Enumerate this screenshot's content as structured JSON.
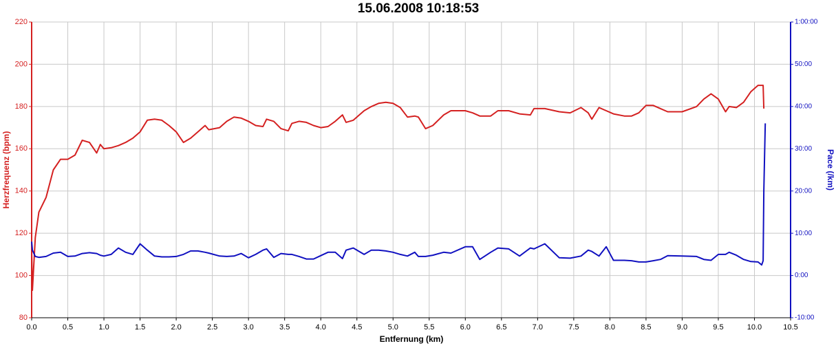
{
  "chart_data": {
    "type": "line",
    "title": "15.06.2008 10:18:53",
    "xlabel": "Entfernung (km)",
    "ylabel": "Herzfrequenz (bpm)",
    "y2label": "Pace (/km)",
    "x": [
      0,
      0.01,
      0.05,
      0.1,
      0.2,
      0.3,
      0.4,
      0.5,
      0.6,
      0.7,
      0.8,
      0.9,
      0.95,
      1.0,
      1.1,
      1.2,
      1.3,
      1.4,
      1.5,
      1.6,
      1.7,
      1.8,
      1.9,
      2.0,
      2.1,
      2.2,
      2.3,
      2.4,
      2.45,
      2.6,
      2.7,
      2.8,
      2.9,
      3.0,
      3.1,
      3.2,
      3.25,
      3.35,
      3.45,
      3.55,
      3.6,
      3.7,
      3.8,
      3.9,
      4.0,
      4.1,
      4.2,
      4.3,
      4.35,
      4.45,
      4.6,
      4.7,
      4.8,
      4.9,
      5.0,
      5.1,
      5.2,
      5.3,
      5.35,
      5.45,
      5.55,
      5.7,
      5.8,
      6.0,
      6.1,
      6.2,
      6.35,
      6.45,
      6.6,
      6.75,
      6.9,
      6.95,
      7.1,
      7.3,
      7.45,
      7.6,
      7.7,
      7.75,
      7.85,
      7.95,
      8.05,
      8.2,
      8.3,
      8.4,
      8.5,
      8.6,
      8.7,
      8.8,
      9.0,
      9.2,
      9.3,
      9.4,
      9.5,
      9.6,
      9.65,
      9.75,
      9.85,
      9.95,
      10.05,
      10.1,
      10.12,
      10.13,
      10.15
    ],
    "series": [
      {
        "name": "Herzfrequenz (bpm)",
        "color": "#d42020",
        "axis": "y",
        "values": [
          112,
          93,
          118,
          130,
          137,
          150,
          155,
          155,
          157,
          164,
          163,
          158,
          162,
          160,
          160.5,
          161.5,
          163,
          165,
          168,
          173.5,
          174,
          173.5,
          171,
          168,
          163,
          165,
          168,
          171,
          169,
          170,
          173,
          175,
          174.5,
          173,
          171,
          170.5,
          174,
          173,
          169.5,
          168.5,
          172,
          173,
          172.5,
          171,
          170,
          170.5,
          173,
          176,
          172.5,
          173.5,
          178,
          180,
          181.5,
          182,
          181.5,
          179.5,
          175,
          175.5,
          175,
          169.5,
          171,
          176,
          178,
          178,
          177,
          175.5,
          175.5,
          178,
          178,
          176.5,
          176,
          179,
          179,
          177.5,
          177,
          179.5,
          177,
          174,
          179.5,
          178,
          176.5,
          175.5,
          175.5,
          177,
          180.5,
          180.5,
          179,
          177.5,
          177.5,
          180,
          183.5,
          186,
          183.5,
          177.5,
          180,
          179.5,
          182,
          187,
          190,
          190,
          190,
          179,
          null
        ]
      },
      {
        "name": "Pace (/km)",
        "color": "#1010c0",
        "axis": "y2",
        "values": [
          8,
          6,
          4.5,
          4.3,
          4.5,
          5.3,
          5.5,
          4.5,
          4.6,
          5.2,
          5.4,
          5.2,
          4.8,
          4.6,
          5,
          6.5,
          5.5,
          5,
          7.5,
          6,
          4.6,
          4.4,
          4.4,
          4.5,
          5,
          5.8,
          5.8,
          5.5,
          5.3,
          4.6,
          4.5,
          4.6,
          5.2,
          4.2,
          5,
          6,
          6.3,
          4.3,
          5.2,
          5,
          5,
          4.5,
          3.9,
          3.9,
          4.7,
          5.5,
          5.5,
          4,
          6,
          6.5,
          5,
          6,
          6,
          5.8,
          5.5,
          5,
          4.6,
          5.5,
          4.5,
          4.5,
          4.8,
          5.5,
          5.3,
          6.8,
          6.8,
          3.8,
          5.5,
          6.5,
          6.3,
          4.6,
          6.5,
          6.3,
          7.5,
          4.2,
          4.1,
          4.6,
          6,
          5.7,
          4.6,
          6.8,
          3.6,
          3.6,
          3.5,
          3.2,
          3.2,
          3.5,
          3.8,
          4.7,
          4.6,
          4.5,
          3.8,
          3.6,
          5,
          5,
          5.5,
          4.8,
          3.8,
          3.3,
          3.2,
          2.5,
          3.5,
          20,
          36
        ]
      }
    ],
    "xlim": [
      0,
      10.5
    ],
    "xticks": [
      {
        "value": 0,
        "label": "0.0"
      },
      0.5,
      {
        "value": 1,
        "label": "1.0"
      },
      1.5,
      {
        "value": 2,
        "label": "2.0"
      },
      2.5,
      {
        "value": 3,
        "label": "3.0"
      },
      3.5,
      {
        "value": 4,
        "label": "4.0"
      },
      4.5,
      {
        "value": 5,
        "label": "5.0"
      },
      5.5,
      {
        "value": 6,
        "label": "6.0"
      },
      6.5,
      {
        "value": 7,
        "label": "7.0"
      },
      7.5,
      {
        "value": 8,
        "label": "8.0"
      },
      8.5,
      {
        "value": 9,
        "label": "9.0"
      },
      9.5,
      {
        "value": 10,
        "label": "10.0"
      },
      10.5
    ],
    "ylim": [
      80,
      220
    ],
    "yticks": [
      80,
      100,
      120,
      140,
      160,
      180,
      200,
      220
    ],
    "y2lim": [
      -10,
      60
    ],
    "y2ticks": [
      {
        "value": -10,
        "label": "-10:00"
      },
      {
        "value": 0,
        "label": "0:00"
      },
      {
        "value": 10,
        "label": "10:00"
      },
      {
        "value": 20,
        "label": "20:00"
      },
      {
        "value": 30,
        "label": "30:00"
      },
      {
        "value": 40,
        "label": "40:00"
      },
      {
        "value": 50,
        "label": "50:00"
      },
      {
        "value": 60,
        "label": "1:00:00"
      }
    ],
    "grid": true
  }
}
